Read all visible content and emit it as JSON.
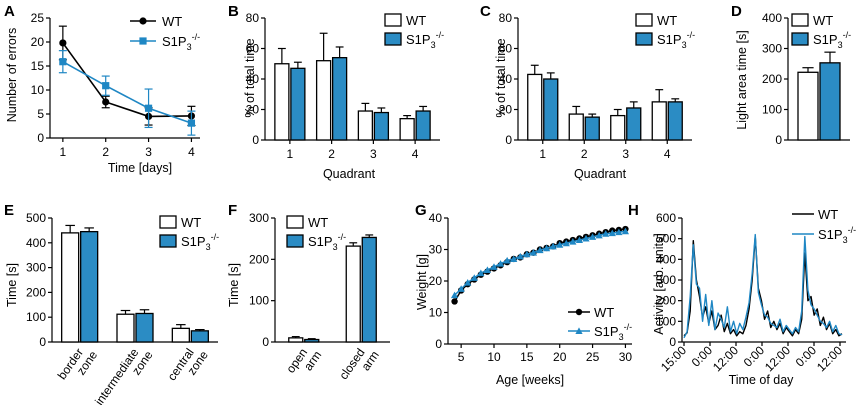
{
  "colors": {
    "wt": "#000000",
    "ko": "#1f87c4",
    "wt_fill": "#ffffff",
    "ko_fill": "#2b8cc4"
  },
  "legend": {
    "wt": "WT",
    "ko_base": "S1P",
    "ko_sub": "3",
    "ko_sup": "-/-"
  },
  "chart_data": [
    {
      "id": "A",
      "panel_label": "A",
      "type": "line",
      "xlabel": "Time [days]",
      "ylabel": "Number of errors",
      "x": [
        1,
        2,
        3,
        4
      ],
      "xlim": [
        0.7,
        4.2
      ],
      "ylim": [
        0,
        25
      ],
      "xticks": [
        1,
        2,
        3,
        4
      ],
      "yticks": [
        0,
        5,
        10,
        15,
        20,
        25
      ],
      "series": [
        {
          "name": "WT",
          "values": [
            19.8,
            7.5,
            4.5,
            4.6
          ],
          "err": [
            3.5,
            1.2,
            1.8,
            2.0
          ]
        },
        {
          "name": "S1P3-/-",
          "values": [
            15.9,
            10.9,
            6.2,
            3.1
          ],
          "err": [
            2.3,
            2.0,
            4.0,
            2.5
          ]
        }
      ]
    },
    {
      "id": "B",
      "panel_label": "B",
      "type": "bar",
      "xlabel": "Quadrant",
      "ylabel": "% of total time",
      "categories": [
        "1",
        "2",
        "3",
        "4"
      ],
      "ylim": [
        0,
        80
      ],
      "yticks": [
        0,
        20,
        40,
        60,
        80
      ],
      "series": [
        {
          "name": "WT",
          "values": [
            50,
            52,
            19,
            14
          ],
          "err": [
            10,
            18,
            5,
            2
          ]
        },
        {
          "name": "S1P3-/-",
          "values": [
            47,
            54,
            18,
            19
          ],
          "err": [
            4,
            7,
            3,
            3
          ]
        }
      ]
    },
    {
      "id": "C",
      "panel_label": "C",
      "type": "bar",
      "xlabel": "Quadrant",
      "ylabel": "% of total time",
      "categories": [
        "1",
        "2",
        "3",
        "4"
      ],
      "ylim": [
        0,
        80
      ],
      "yticks": [
        0,
        20,
        40,
        60,
        80
      ],
      "series": [
        {
          "name": "WT",
          "values": [
            43,
            17,
            16,
            25
          ],
          "err": [
            6,
            5,
            4,
            8
          ]
        },
        {
          "name": "S1P3-/-",
          "values": [
            40,
            15,
            21,
            25
          ],
          "err": [
            4,
            2,
            4,
            2
          ]
        }
      ]
    },
    {
      "id": "D",
      "panel_label": "D",
      "type": "bar",
      "xlabel": "",
      "ylabel": "Light area time [s]",
      "categories": [
        ""
      ],
      "ylim": [
        0,
        400
      ],
      "yticks": [
        0,
        100,
        200,
        300,
        400
      ],
      "series": [
        {
          "name": "WT",
          "values": [
            222
          ],
          "err": [
            15
          ]
        },
        {
          "name": "S1P3-/-",
          "values": [
            253
          ],
          "err": [
            35
          ]
        }
      ]
    },
    {
      "id": "E",
      "panel_label": "E",
      "type": "bar",
      "xlabel": "",
      "ylabel": "Time [s]",
      "categories": [
        "border zone",
        "intermediate zone",
        "central zone"
      ],
      "ylim": [
        0,
        500
      ],
      "yticks": [
        0,
        100,
        200,
        300,
        400,
        500
      ],
      "series": [
        {
          "name": "WT",
          "values": [
            440,
            112,
            55
          ],
          "err": [
            30,
            15,
            15
          ]
        },
        {
          "name": "S1P3-/-",
          "values": [
            445,
            115,
            45
          ],
          "err": [
            15,
            15,
            5
          ]
        }
      ]
    },
    {
      "id": "F",
      "panel_label": "F",
      "type": "bar",
      "xlabel": "",
      "ylabel": "Time [s]",
      "categories": [
        "open arm",
        "closed arm"
      ],
      "ylim": [
        0,
        300
      ],
      "yticks": [
        0,
        100,
        200,
        300
      ],
      "series": [
        {
          "name": "WT",
          "values": [
            10,
            232
          ],
          "err": [
            3,
            8
          ]
        },
        {
          "name": "S1P3-/-",
          "values": [
            6,
            253
          ],
          "err": [
            2,
            6
          ]
        }
      ]
    },
    {
      "id": "G",
      "panel_label": "G",
      "type": "line",
      "xlabel": "Age [weeks]",
      "ylabel": "Weight [g]",
      "xlim": [
        3,
        31
      ],
      "ylim": [
        0,
        40
      ],
      "xticks": [
        5,
        10,
        15,
        20,
        25,
        30
      ],
      "yticks": [
        0,
        10,
        20,
        30,
        40
      ],
      "x": [
        4,
        5,
        6,
        7,
        8,
        9,
        10,
        11,
        12,
        13,
        14,
        15,
        16,
        17,
        18,
        19,
        20,
        21,
        22,
        23,
        24,
        25,
        26,
        27,
        28,
        29,
        30
      ],
      "series": [
        {
          "name": "WT",
          "values": [
            13.5,
            17,
            19,
            20.5,
            22,
            23,
            24,
            25,
            26,
            27,
            27.5,
            28.5,
            29,
            30,
            30.5,
            31,
            32,
            32.5,
            33,
            33.5,
            34,
            34.5,
            35,
            35.5,
            36,
            36.2,
            36.5
          ]
        },
        {
          "name": "S1P3-/-",
          "values": [
            15.5,
            17.5,
            19.5,
            21,
            22.5,
            23.5,
            24.5,
            25.5,
            26.5,
            27,
            27.8,
            28.5,
            29,
            29.8,
            30.4,
            31,
            31.5,
            32,
            32.5,
            33,
            33.5,
            34,
            34.5,
            35,
            35.2,
            35.5,
            35.8
          ]
        }
      ]
    },
    {
      "id": "H",
      "panel_label": "H",
      "type": "line",
      "xlabel": "Time of day",
      "ylabel": "Activity [arb. units]",
      "xticks": [
        "15:00",
        "0:00",
        "12:00",
        "0:00",
        "12:00",
        "0:00",
        "12:00"
      ],
      "ylim": [
        0,
        600
      ],
      "yticks": [
        0,
        100,
        200,
        300,
        400,
        500,
        600
      ],
      "series": [
        {
          "name": "WT",
          "values": [
            30,
            45,
            150,
            490,
            300,
            220,
            120,
            170,
            90,
            150,
            60,
            80,
            130,
            50,
            90,
            40,
            60,
            30,
            50,
            40,
            80,
            160,
            300,
            510,
            260,
            200,
            110,
            150,
            70,
            100,
            60,
            90,
            40,
            70,
            50,
            30,
            60,
            40,
            110,
            430,
            200,
            220,
            130,
            160,
            80,
            120,
            60,
            90,
            40,
            60,
            30,
            40
          ]
        },
        {
          "name": "S1P3-/-",
          "values": [
            20,
            50,
            220,
            470,
            280,
            260,
            100,
            230,
            80,
            200,
            60,
            140,
            110,
            70,
            170,
            50,
            100,
            40,
            90,
            60,
            120,
            190,
            330,
            520,
            240,
            180,
            130,
            120,
            90,
            80,
            70,
            110,
            50,
            80,
            60,
            40,
            70,
            50,
            150,
            510,
            250,
            180,
            160,
            130,
            100,
            90,
            70,
            100,
            50,
            80,
            40,
            35
          ]
        }
      ]
    }
  ]
}
